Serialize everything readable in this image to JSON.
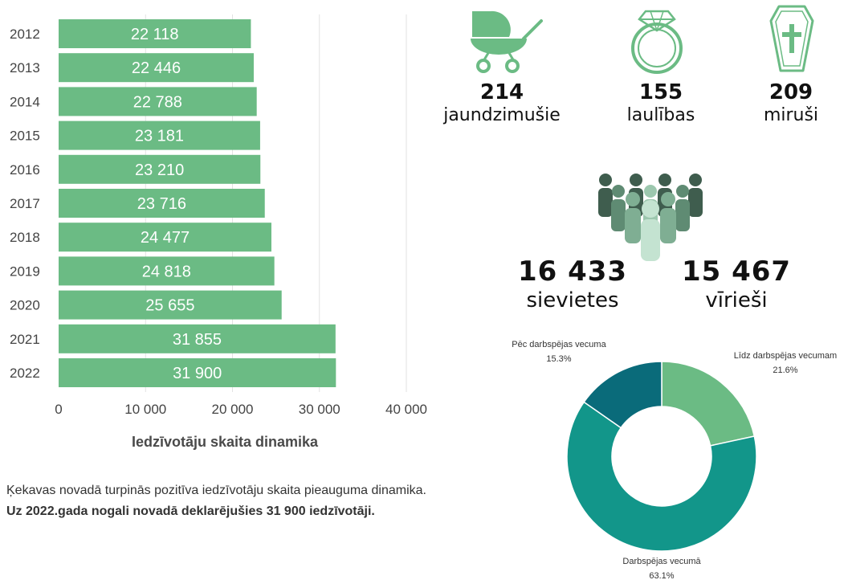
{
  "chart_data": [
    {
      "type": "bar",
      "orientation": "horizontal",
      "categories": [
        "2012",
        "2013",
        "2014",
        "2015",
        "2016",
        "2017",
        "2018",
        "2019",
        "2020",
        "2021",
        "2022"
      ],
      "values": [
        22118,
        22446,
        22788,
        23181,
        23210,
        23716,
        24477,
        24818,
        25655,
        31855,
        31900
      ],
      "value_labels": [
        "22 118",
        "22 446",
        "22 788",
        "23 181",
        "23 210",
        "23 716",
        "24 477",
        "24 818",
        "25 655",
        "31 855",
        "31 900"
      ],
      "xticks": [
        "0",
        "10 000",
        "20 000",
        "30 000",
        "40 000"
      ],
      "xlim": [
        0,
        40000
      ],
      "title": "Iedzīvotāju skaita dinamika",
      "grid": true,
      "color": "#6bbb84"
    },
    {
      "type": "pie",
      "style": "donut",
      "slices": [
        {
          "label": "Līdz darbspējas vecumam",
          "value": 21.6,
          "display": "21.6%",
          "color": "#6bbb84"
        },
        {
          "label": "Darbspējas vecumā",
          "value": 63.1,
          "display": "63.1%",
          "color": "#12968a"
        },
        {
          "label": "Pēc darbspējas vecuma",
          "value": 15.3,
          "display": "15.3%",
          "color": "#0a6b7a"
        }
      ]
    }
  ],
  "stats": {
    "newborns": {
      "value": "214",
      "label": "jaundzimušie"
    },
    "marriages": {
      "value": "155",
      "label": "laulības"
    },
    "deaths": {
      "value": "209",
      "label": "miruši"
    },
    "women": {
      "value": "16 433",
      "label": "sievietes"
    },
    "men": {
      "value": "15 467",
      "label": "vīrieši"
    }
  },
  "text": {
    "paragraph": "Ķekavas novadā turpinās pozitīva iedzīvotāju skaita pieauguma dinamika.",
    "bold_line": "Uz 2022.gada nogali novadā deklarējušies 31 900 iedzīvotāji."
  },
  "icons": [
    "baby-carriage-icon",
    "ring-icon",
    "coffin-icon",
    "people-group-icon"
  ],
  "colors": {
    "accent": "#6bbb84",
    "dark": "#3d5a4c"
  }
}
